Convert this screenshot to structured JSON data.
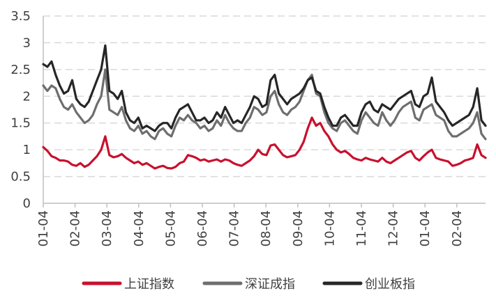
{
  "chart_data": {
    "type": "line",
    "title": "",
    "xlabel": "",
    "ylabel": "",
    "ylim": [
      0,
      3.5
    ],
    "yticks": [
      "0",
      "0.5",
      "1",
      "1.5",
      "2",
      "2.5",
      "3",
      "3.5"
    ],
    "xticks": [
      "01-04",
      "02-04",
      "03-04",
      "04-04",
      "05-04",
      "06-04",
      "07-04",
      "08-04",
      "09-04",
      "10-04",
      "11-04",
      "12-04",
      "01-04",
      "02-04"
    ],
    "grid": "horizontal-dashed",
    "legend_position": "bottom",
    "series": [
      {
        "name": "上证指数",
        "color": "#c8102e",
        "values": [
          1.05,
          0.98,
          0.88,
          0.85,
          0.8,
          0.8,
          0.78,
          0.72,
          0.7,
          0.75,
          0.68,
          0.72,
          0.8,
          0.88,
          1.0,
          1.25,
          0.9,
          0.86,
          0.88,
          0.92,
          0.85,
          0.8,
          0.75,
          0.78,
          0.72,
          0.75,
          0.7,
          0.65,
          0.68,
          0.7,
          0.66,
          0.65,
          0.68,
          0.75,
          0.78,
          0.9,
          0.88,
          0.85,
          0.8,
          0.82,
          0.78,
          0.8,
          0.82,
          0.78,
          0.82,
          0.8,
          0.75,
          0.72,
          0.7,
          0.75,
          0.8,
          0.88,
          1.0,
          0.92,
          0.9,
          1.08,
          1.1,
          1.0,
          0.9,
          0.86,
          0.88,
          0.9,
          1.0,
          1.15,
          1.4,
          1.6,
          1.45,
          1.5,
          1.35,
          1.25,
          1.1,
          1.0,
          0.95,
          0.98,
          0.92,
          0.85,
          0.82,
          0.8,
          0.85,
          0.82,
          0.8,
          0.78,
          0.85,
          0.78,
          0.75,
          0.8,
          0.85,
          0.9,
          0.95,
          0.98,
          0.85,
          0.8,
          0.88,
          0.95,
          1.0,
          0.85,
          0.82,
          0.8,
          0.78,
          0.7,
          0.72,
          0.75,
          0.8,
          0.82,
          0.85,
          1.1,
          0.9,
          0.85
        ]
      },
      {
        "name": "深证成指",
        "color": "#6e6e6e",
        "values": [
          2.2,
          2.1,
          2.2,
          2.15,
          1.95,
          1.8,
          1.75,
          1.85,
          1.7,
          1.6,
          1.5,
          1.55,
          1.65,
          1.85,
          2.0,
          2.5,
          1.75,
          1.7,
          1.65,
          1.8,
          1.55,
          1.4,
          1.35,
          1.45,
          1.3,
          1.35,
          1.25,
          1.2,
          1.35,
          1.4,
          1.3,
          1.25,
          1.45,
          1.6,
          1.55,
          1.65,
          1.55,
          1.5,
          1.4,
          1.45,
          1.35,
          1.4,
          1.55,
          1.45,
          1.65,
          1.5,
          1.4,
          1.35,
          1.35,
          1.5,
          1.6,
          1.8,
          1.75,
          1.65,
          1.7,
          2.0,
          2.1,
          1.85,
          1.7,
          1.65,
          1.75,
          1.8,
          1.9,
          2.1,
          2.3,
          2.4,
          2.05,
          2.0,
          1.7,
          1.5,
          1.4,
          1.35,
          1.5,
          1.55,
          1.45,
          1.35,
          1.3,
          1.55,
          1.7,
          1.6,
          1.5,
          1.45,
          1.7,
          1.55,
          1.45,
          1.55,
          1.7,
          1.8,
          1.85,
          1.9,
          1.6,
          1.55,
          1.75,
          1.8,
          1.85,
          1.65,
          1.6,
          1.55,
          1.35,
          1.25,
          1.25,
          1.3,
          1.35,
          1.4,
          1.5,
          1.7,
          1.3,
          1.2
        ]
      },
      {
        "name": "创业板指",
        "color": "#262626",
        "values": [
          2.6,
          2.55,
          2.65,
          2.4,
          2.2,
          2.05,
          2.1,
          2.3,
          1.95,
          1.85,
          1.8,
          1.9,
          2.1,
          2.3,
          2.5,
          2.95,
          2.1,
          2.05,
          1.95,
          2.1,
          1.7,
          1.55,
          1.5,
          1.6,
          1.4,
          1.45,
          1.4,
          1.35,
          1.45,
          1.5,
          1.5,
          1.4,
          1.6,
          1.75,
          1.8,
          1.85,
          1.7,
          1.55,
          1.55,
          1.6,
          1.5,
          1.55,
          1.7,
          1.6,
          1.8,
          1.65,
          1.5,
          1.55,
          1.5,
          1.65,
          1.8,
          2.0,
          1.95,
          1.8,
          1.85,
          2.3,
          2.4,
          2.05,
          1.95,
          1.85,
          1.95,
          2.0,
          2.05,
          2.15,
          2.3,
          2.35,
          2.1,
          2.05,
          1.8,
          1.6,
          1.45,
          1.45,
          1.6,
          1.65,
          1.55,
          1.45,
          1.45,
          1.7,
          1.85,
          1.9,
          1.75,
          1.7,
          1.85,
          1.8,
          1.75,
          1.85,
          1.95,
          2.0,
          2.05,
          2.1,
          1.85,
          1.8,
          2.0,
          2.05,
          2.35,
          1.9,
          1.8,
          1.7,
          1.55,
          1.45,
          1.5,
          1.55,
          1.6,
          1.65,
          1.8,
          2.15,
          1.55,
          1.45
        ]
      }
    ]
  }
}
